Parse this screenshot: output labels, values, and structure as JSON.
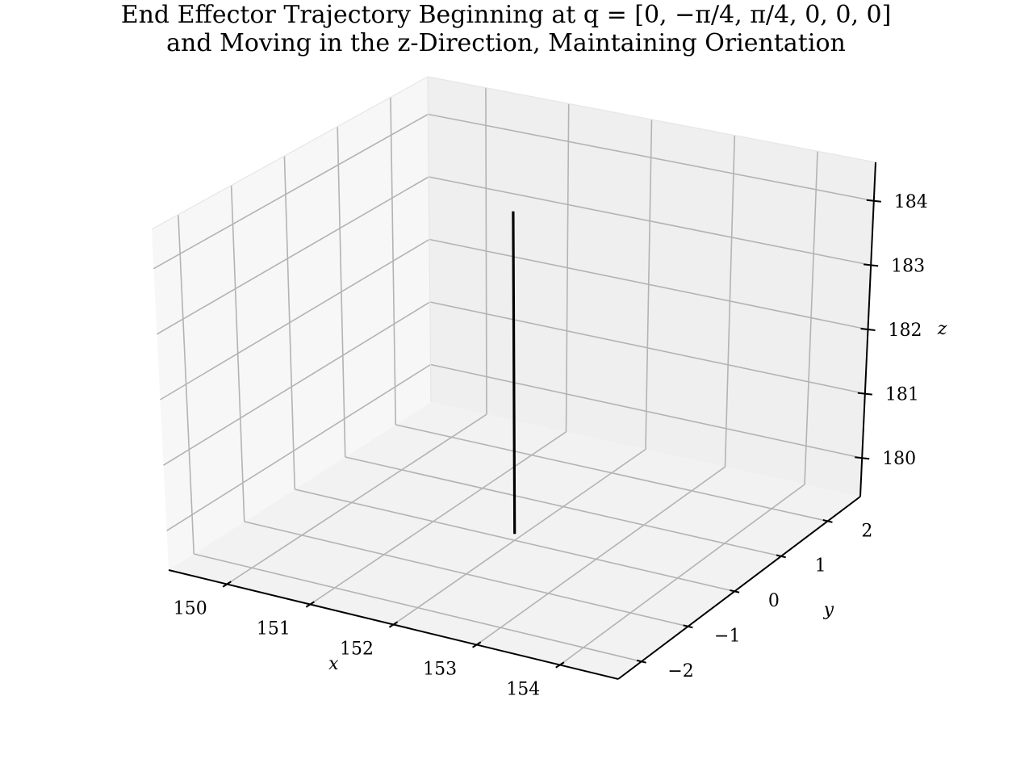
{
  "chart_data": {
    "type": "line",
    "projection": "3d",
    "title_line1": "End Effector Trajectory Beginning at q = [0, −π/4, π/4, 0, 0, 0]",
    "title_line2": "and Moving in the z-Direction, Maintaining Orientation",
    "xlabel": "x",
    "ylabel": "y",
    "zlabel": "z",
    "xlim": [
      149.3,
      154.7
    ],
    "ylim": [
      -2.5,
      2.7
    ],
    "zlim": [
      179.4,
      184.6
    ],
    "xticks": [
      150,
      151,
      152,
      153,
      154
    ],
    "yticks": [
      -2,
      -1,
      0,
      1,
      2
    ],
    "zticks": [
      180,
      181,
      182,
      183,
      184
    ],
    "xtick_labels": [
      "150",
      "151",
      "152",
      "153",
      "154"
    ],
    "ytick_labels": [
      "−2",
      "−1",
      "0",
      "1",
      "2"
    ],
    "ztick_labels": [
      "180",
      "181",
      "182",
      "183",
      "184"
    ],
    "grid": true,
    "series": [
      {
        "color": "#000000",
        "x": [
          152,
          152
        ],
        "y": [
          0,
          0
        ],
        "z": [
          179.5,
          184.5
        ]
      }
    ]
  }
}
